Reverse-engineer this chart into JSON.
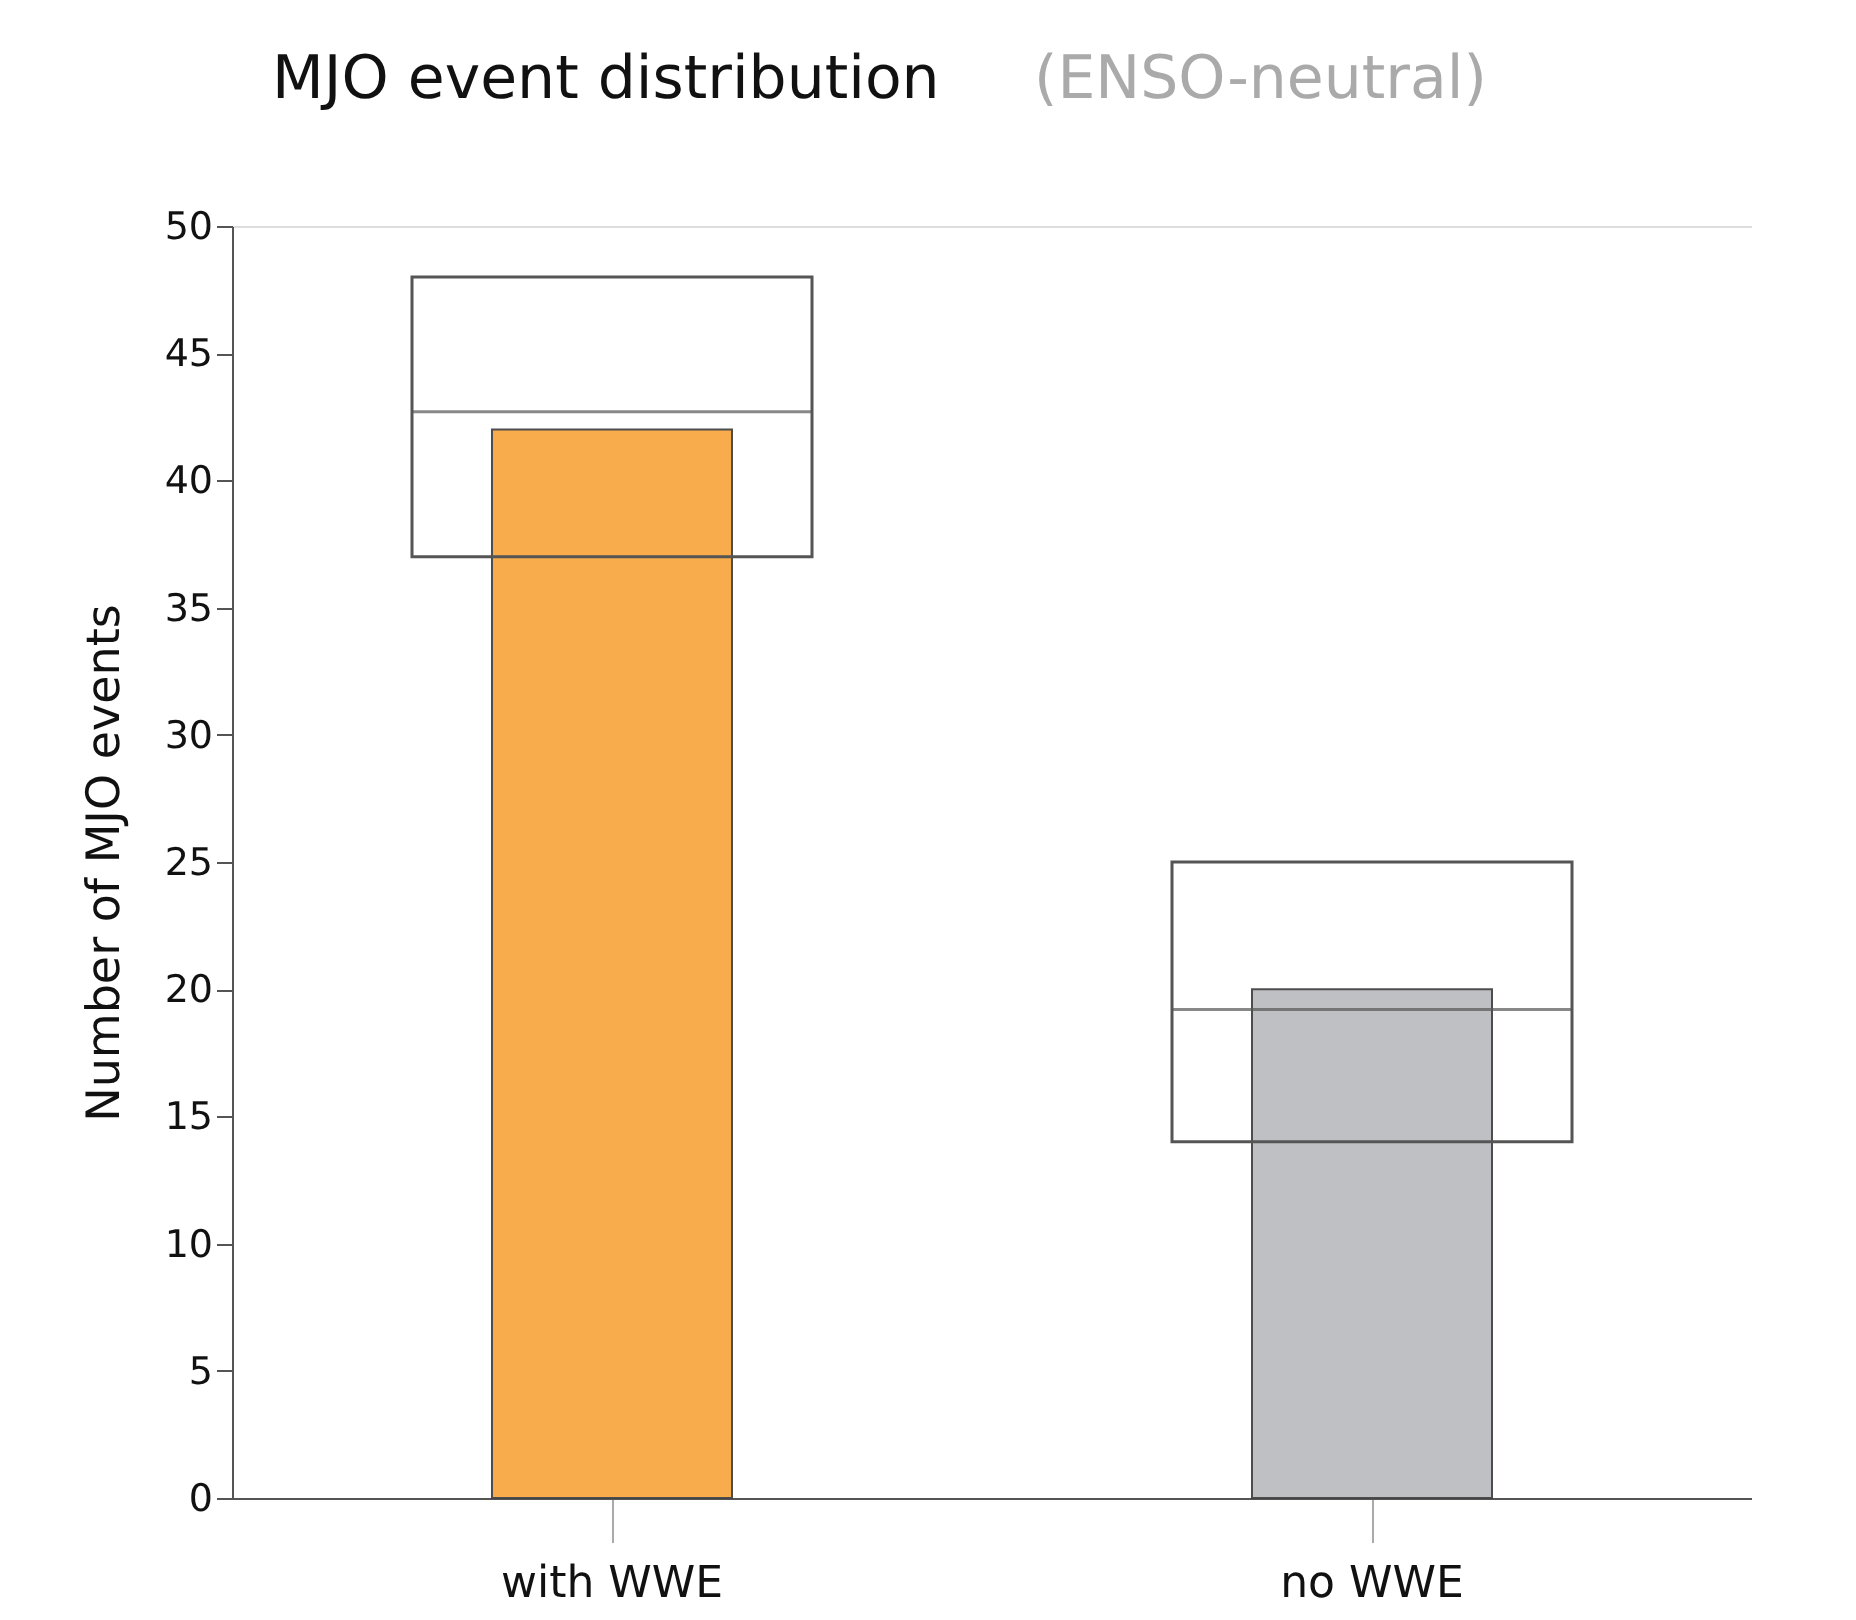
{
  "chart_data": {
    "type": "bar",
    "title": "MJO event distribution",
    "subtitle": "(ENSO-neutral)",
    "ylabel": "Number of MJO events",
    "categories": [
      "with WWE",
      "no WWE"
    ],
    "ylim": [
      0,
      50
    ],
    "yticks": [
      0,
      5,
      10,
      15,
      20,
      25,
      30,
      35,
      40,
      45,
      50
    ],
    "grid": false,
    "legend": false,
    "series": [
      {
        "colors": [
          "#f9a843",
          "#bcbdc0"
        ],
        "values": [
          42,
          20
        ]
      },
      {
        "type": "box",
        "color": "#555555",
        "boxes": [
          {
            "low": 37,
            "q1": 37,
            "median": 42.7,
            "q3": 48,
            "high": 48
          },
          {
            "low": 14,
            "q1": 14,
            "median": 19.2,
            "q3": 25,
            "high": 25
          }
        ]
      }
    ]
  }
}
